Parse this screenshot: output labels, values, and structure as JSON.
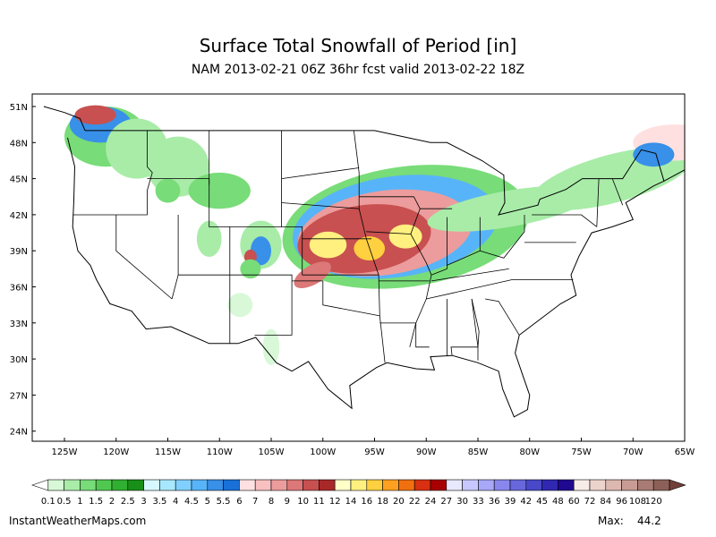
{
  "title": "Surface Total Snowfall of Period [in]",
  "subtitle": "NAM 2013-02-21 06Z 36hr fcst valid 2013-02-22 18Z",
  "lat_labels": [
    "51N",
    "48N",
    "45N",
    "42N",
    "39N",
    "36N",
    "33N",
    "30N",
    "27N",
    "24N"
  ],
  "lon_labels": [
    "125W",
    "120W",
    "115W",
    "110W",
    "105W",
    "100W",
    "95W",
    "90W",
    "85W",
    "80W",
    "75W",
    "70W",
    "65W"
  ],
  "colorbar": {
    "levels": [
      0.1,
      0.5,
      1,
      1.5,
      2,
      2.5,
      3,
      3.5,
      4,
      4.5,
      5,
      5.5,
      6,
      7,
      8,
      9,
      10,
      11,
      12,
      14,
      16,
      18,
      20,
      22,
      24,
      27,
      30,
      33,
      36,
      39,
      42,
      45,
      48,
      60,
      72,
      84,
      96,
      108,
      120
    ],
    "colors": [
      "#ffffff",
      "#d8f8d8",
      "#a8eca8",
      "#78dc78",
      "#50c850",
      "#30b030",
      "#189018",
      "#d8f8ff",
      "#a8e8ff",
      "#80d0ff",
      "#58b4f8",
      "#3890e8",
      "#1870d8",
      "#ffe0e0",
      "#f8c0c0",
      "#ec9c9c",
      "#dc7878",
      "#c85050",
      "#a82828",
      "#ffffc8",
      "#fff080",
      "#ffd040",
      "#ffa020",
      "#f07010",
      "#d83010",
      "#a80000",
      "#e8e8ff",
      "#c8c8ff",
      "#a8a8f8",
      "#8888ec",
      "#6868dc",
      "#4848c8",
      "#3028b0",
      "#200890",
      "#f8ece8",
      "#ecd4cc",
      "#dcb8b0",
      "#c89c94",
      "#a87c74",
      "#8c6058",
      "#704038"
    ]
  },
  "footer": {
    "source": "InstantWeatherMaps.com",
    "max_label": "Max:",
    "max_value": 44.2
  }
}
